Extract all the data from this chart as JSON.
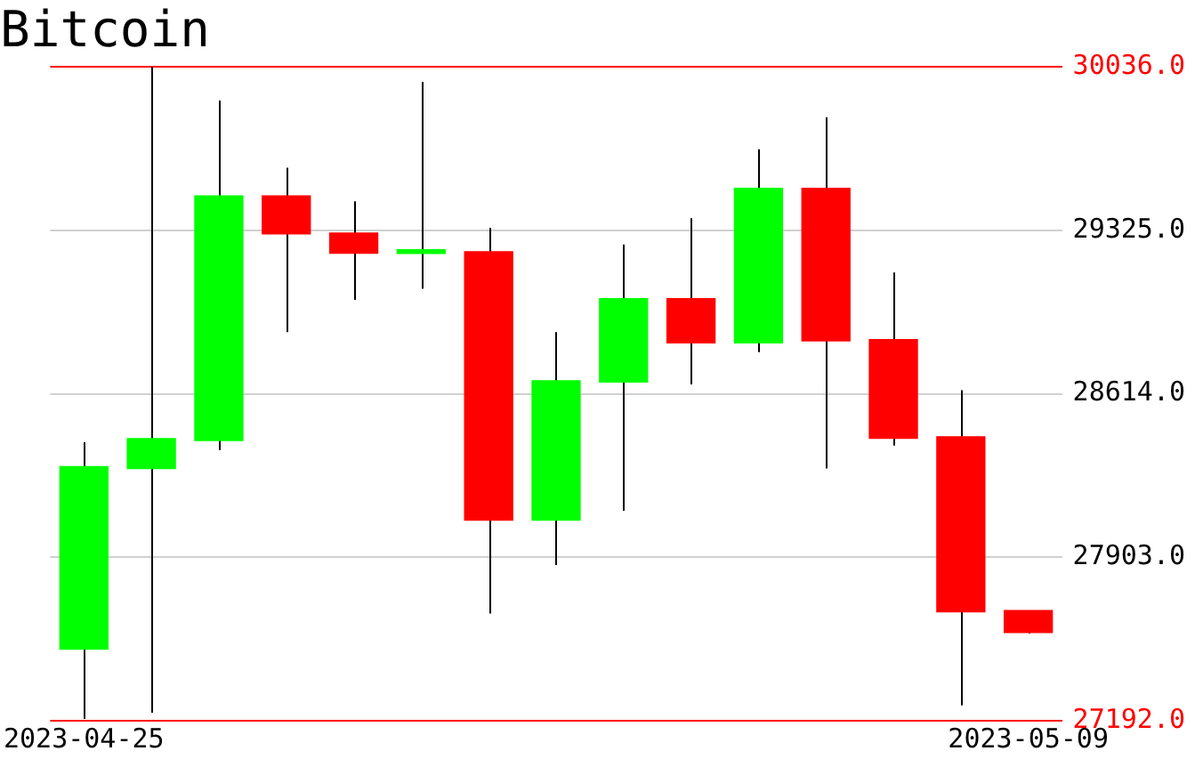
{
  "chart_data": {
    "type": "candlestick",
    "title": "Bitcoin",
    "categories": [
      "2023-04-25",
      null,
      null,
      null,
      null,
      null,
      null,
      null,
      null,
      null,
      null,
      null,
      null,
      null,
      "2023-05-09"
    ],
    "ohlc": [
      [
        27503,
        28403,
        27200,
        28297
      ],
      [
        28289,
        30036,
        27227,
        28419
      ],
      [
        28411,
        29890,
        28370,
        29475
      ],
      [
        29475,
        29597,
        28882,
        29310
      ],
      [
        29313,
        29451,
        29023,
        29226
      ],
      [
        29225,
        29971,
        29071,
        29235
      ],
      [
        29232,
        29335,
        27658,
        28064
      ],
      [
        28064,
        28882,
        27869,
        28671
      ],
      [
        28665,
        29264,
        28105,
        29028
      ],
      [
        29028,
        29378,
        28655,
        28836
      ],
      [
        28836,
        29678,
        28795,
        29508
      ],
      [
        29508,
        29817,
        28289,
        28844
      ],
      [
        28850,
        29142,
        28389,
        28421
      ],
      [
        28427,
        28630,
        27259,
        27666
      ],
      [
        27671,
        27671,
        27571,
        27576
      ]
    ],
    "colors": [
      "#00ff00",
      "#00ff00",
      "#00ff00",
      "#ff0000",
      "#ff0000",
      "#00ff00",
      "#ff0000",
      "#00ff00",
      "#00ff00",
      "#ff0000",
      "#00ff00",
      "#ff0000",
      "#ff0000",
      "#ff0000",
      "#ff0000"
    ],
    "ylim": [
      27192,
      30036
    ],
    "yticks": [
      {
        "value": 27192,
        "label": "27192.0"
      },
      {
        "value": 27903,
        "label": "27903.0"
      },
      {
        "value": 28614,
        "label": "28614.0"
      },
      {
        "value": 29325,
        "label": "29325.0"
      },
      {
        "value": 30036,
        "label": "30036.0"
      }
    ],
    "grid": "y",
    "legend": false
  }
}
